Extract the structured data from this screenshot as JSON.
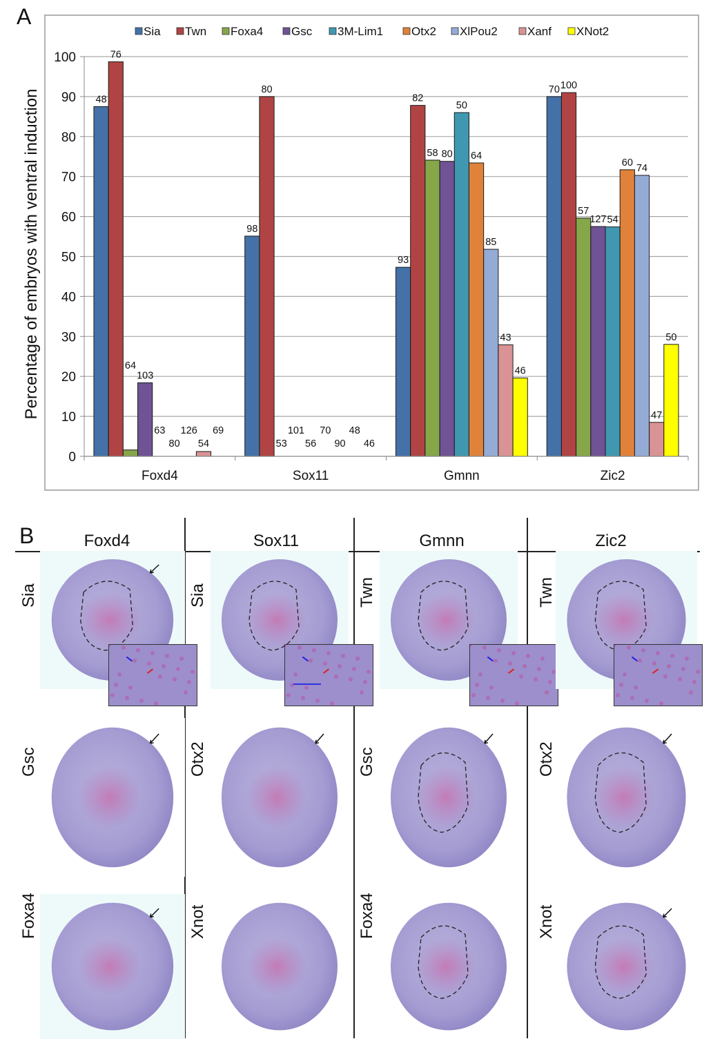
{
  "panel_a": {
    "letter": "A"
  },
  "panel_b": {
    "letter": "B",
    "columns": [
      "Foxd4",
      "Sox11",
      "Gmnn",
      "Zic2"
    ],
    "rows": [
      [
        "Sia",
        "Sia",
        "Twn",
        "Twn"
      ],
      [
        "Gsc",
        "Otx2",
        "Gsc",
        "Otx2"
      ],
      [
        "Foxa4",
        "Xnot",
        "Foxa4",
        "Xnot"
      ]
    ],
    "images": [
      {
        "col": "Foxd4",
        "row": "Sia",
        "dashed_outline": true,
        "inset": true,
        "black_arrow": true
      },
      {
        "col": "Sox11",
        "row": "Sia",
        "dashed_outline": true,
        "inset": true,
        "black_arrow": false
      },
      {
        "col": "Gmnn",
        "row": "Twn",
        "dashed_outline": true,
        "inset": true,
        "black_arrow": false
      },
      {
        "col": "Zic2",
        "row": "Twn",
        "dashed_outline": true,
        "inset": true,
        "black_arrow": false
      },
      {
        "col": "Foxd4",
        "row": "Gsc",
        "dashed_outline": false,
        "inset": false,
        "black_arrow": true
      },
      {
        "col": "Sox11",
        "row": "Otx2",
        "dashed_outline": false,
        "inset": false,
        "black_arrow": true
      },
      {
        "col": "Gmnn",
        "row": "Gsc",
        "dashed_outline": true,
        "inset": false,
        "black_arrow": true
      },
      {
        "col": "Zic2",
        "row": "Otx2",
        "dashed_outline": true,
        "inset": false,
        "black_arrow": true
      },
      {
        "col": "Foxd4",
        "row": "Foxa4",
        "dashed_outline": false,
        "inset": false,
        "black_arrow": true
      },
      {
        "col": "Sox11",
        "row": "Xnot",
        "dashed_outline": false,
        "inset": false,
        "black_arrow": false
      },
      {
        "col": "Gmnn",
        "row": "Foxa4",
        "dashed_outline": true,
        "inset": false,
        "black_arrow": false
      },
      {
        "col": "Zic2",
        "row": "Xnot",
        "dashed_outline": true,
        "inset": false,
        "black_arrow": true
      }
    ]
  },
  "chart_data": {
    "type": "bar",
    "title": "",
    "xlabel": "",
    "ylabel": "Percentage of embryos with ventral induction",
    "ylim": [
      0,
      100
    ],
    "yticks": [
      0,
      10,
      20,
      30,
      40,
      50,
      60,
      70,
      80,
      90,
      100
    ],
    "grid": true,
    "legend_position": "top",
    "categories": [
      "Foxd4",
      "Sox11",
      "Gmnn",
      "Zic2"
    ],
    "series": [
      {
        "name": "Sia",
        "color": "#4472a8",
        "values": [
          87.5,
          55.1,
          47.3,
          90.0
        ],
        "n_labels": [
          "48",
          "98",
          "93",
          "70"
        ]
      },
      {
        "name": "Twn",
        "color": "#b04444",
        "values": [
          98.7,
          90.0,
          87.8,
          91.0
        ],
        "n_labels": [
          "76",
          "80",
          "82",
          "100"
        ]
      },
      {
        "name": "Foxa4",
        "color": "#86a64a",
        "values": [
          1.6,
          0,
          74.1,
          59.6
        ],
        "n_labels": [
          "64",
          "53",
          "58",
          "57"
        ]
      },
      {
        "name": "Gsc",
        "color": "#6f5394",
        "values": [
          18.4,
          0,
          73.8,
          57.5
        ],
        "n_labels": [
          "103",
          "101",
          "80",
          "127"
        ]
      },
      {
        "name": "3M-Lim1",
        "color": "#3f98b0",
        "values": [
          0,
          0,
          86.0,
          57.4
        ],
        "n_labels": [
          "63",
          "56",
          "50",
          "54"
        ]
      },
      {
        "name": "Otx2",
        "color": "#e0823a",
        "values": [
          0,
          0,
          73.4,
          71.7
        ],
        "n_labels": [
          "80",
          "70",
          "64",
          "60"
        ]
      },
      {
        "name": "XlPou2",
        "color": "#94abd6",
        "values": [
          0,
          0,
          51.8,
          70.3
        ],
        "n_labels": [
          "126",
          "90",
          "85",
          "74"
        ]
      },
      {
        "name": "Xanf",
        "color": "#d99394",
        "values": [
          1.2,
          0,
          27.9,
          8.5
        ],
        "n_labels": [
          "54",
          "48",
          "43",
          "47"
        ]
      },
      {
        "name": "XNot2",
        "color": "#ffff00",
        "values": [
          0,
          0,
          19.6,
          28.0
        ],
        "n_labels": [
          "69",
          "46",
          "46",
          "50"
        ]
      }
    ]
  }
}
